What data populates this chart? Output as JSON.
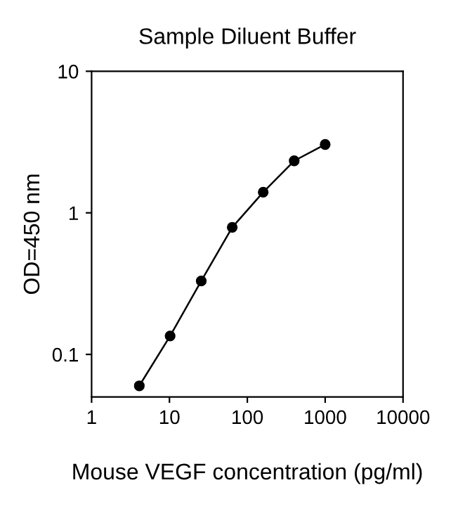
{
  "chart_data": {
    "type": "line",
    "title": "Sample Diluent Buffer",
    "xlabel": "Mouse VEGF concentration (pg/ml)",
    "ylabel": "OD=450 nm",
    "x": [
      4.1,
      10.2,
      25.6,
      64,
      160,
      400,
      1000
    ],
    "series": [
      {
        "color": "#000000",
        "values": [
          0.06,
          0.135,
          0.33,
          0.79,
          1.4,
          2.33,
          3.04
        ]
      }
    ],
    "log": "xy",
    "xlim": [
      1,
      10000
    ],
    "xticks": [
      1,
      10,
      100,
      1000,
      10000
    ],
    "ylim": [
      0.05,
      10
    ],
    "yticks": [
      0.1,
      1,
      10
    ],
    "marker": "circle",
    "line_style": "solid",
    "grid": false,
    "legend": false
  }
}
